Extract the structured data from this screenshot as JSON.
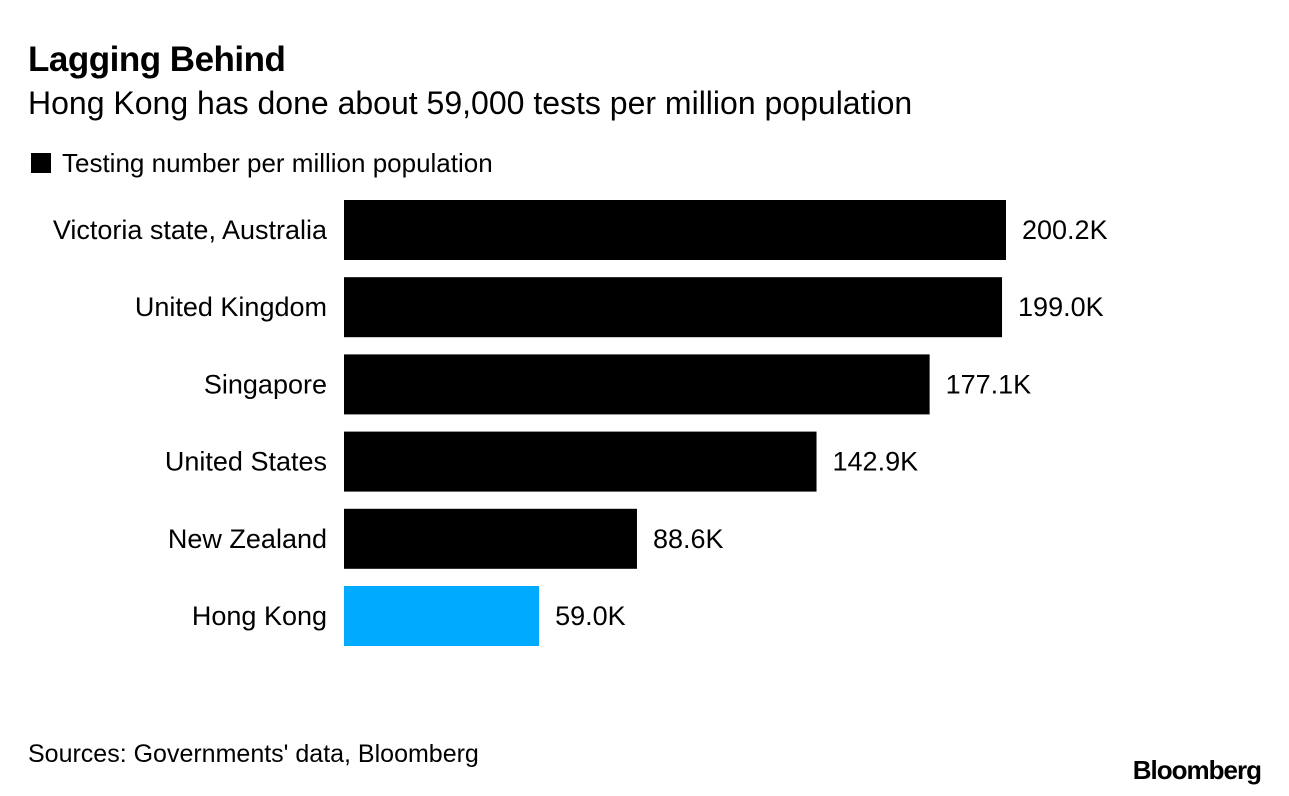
{
  "header": {
    "title": "Lagging Behind",
    "subtitle": "Hong Kong has done about 59,000 tests per million population"
  },
  "chart_data": {
    "type": "bar",
    "orientation": "horizontal",
    "categories": [
      "Victoria state, Australia",
      "United Kingdom",
      "Singapore",
      "United States",
      "New Zealand",
      "Hong Kong"
    ],
    "series": [
      {
        "name": "Testing number per million population",
        "values": [
          200.2,
          199.0,
          177.1,
          142.9,
          88.6,
          59.0
        ],
        "labels": [
          "200.2K",
          "199.0K",
          "177.1K",
          "142.9K",
          "88.6K",
          "59.0K"
        ]
      }
    ],
    "unit": "K",
    "xlim": [
      0,
      200.2
    ],
    "grid": false,
    "legend_position": "top-left",
    "colors": {
      "default": "#000000",
      "highlight": "#00aaff"
    },
    "highlight_category": "Hong Kong"
  },
  "footer": {
    "source": "Sources: Governments' data, Bloomberg",
    "brand": "Bloomberg"
  }
}
